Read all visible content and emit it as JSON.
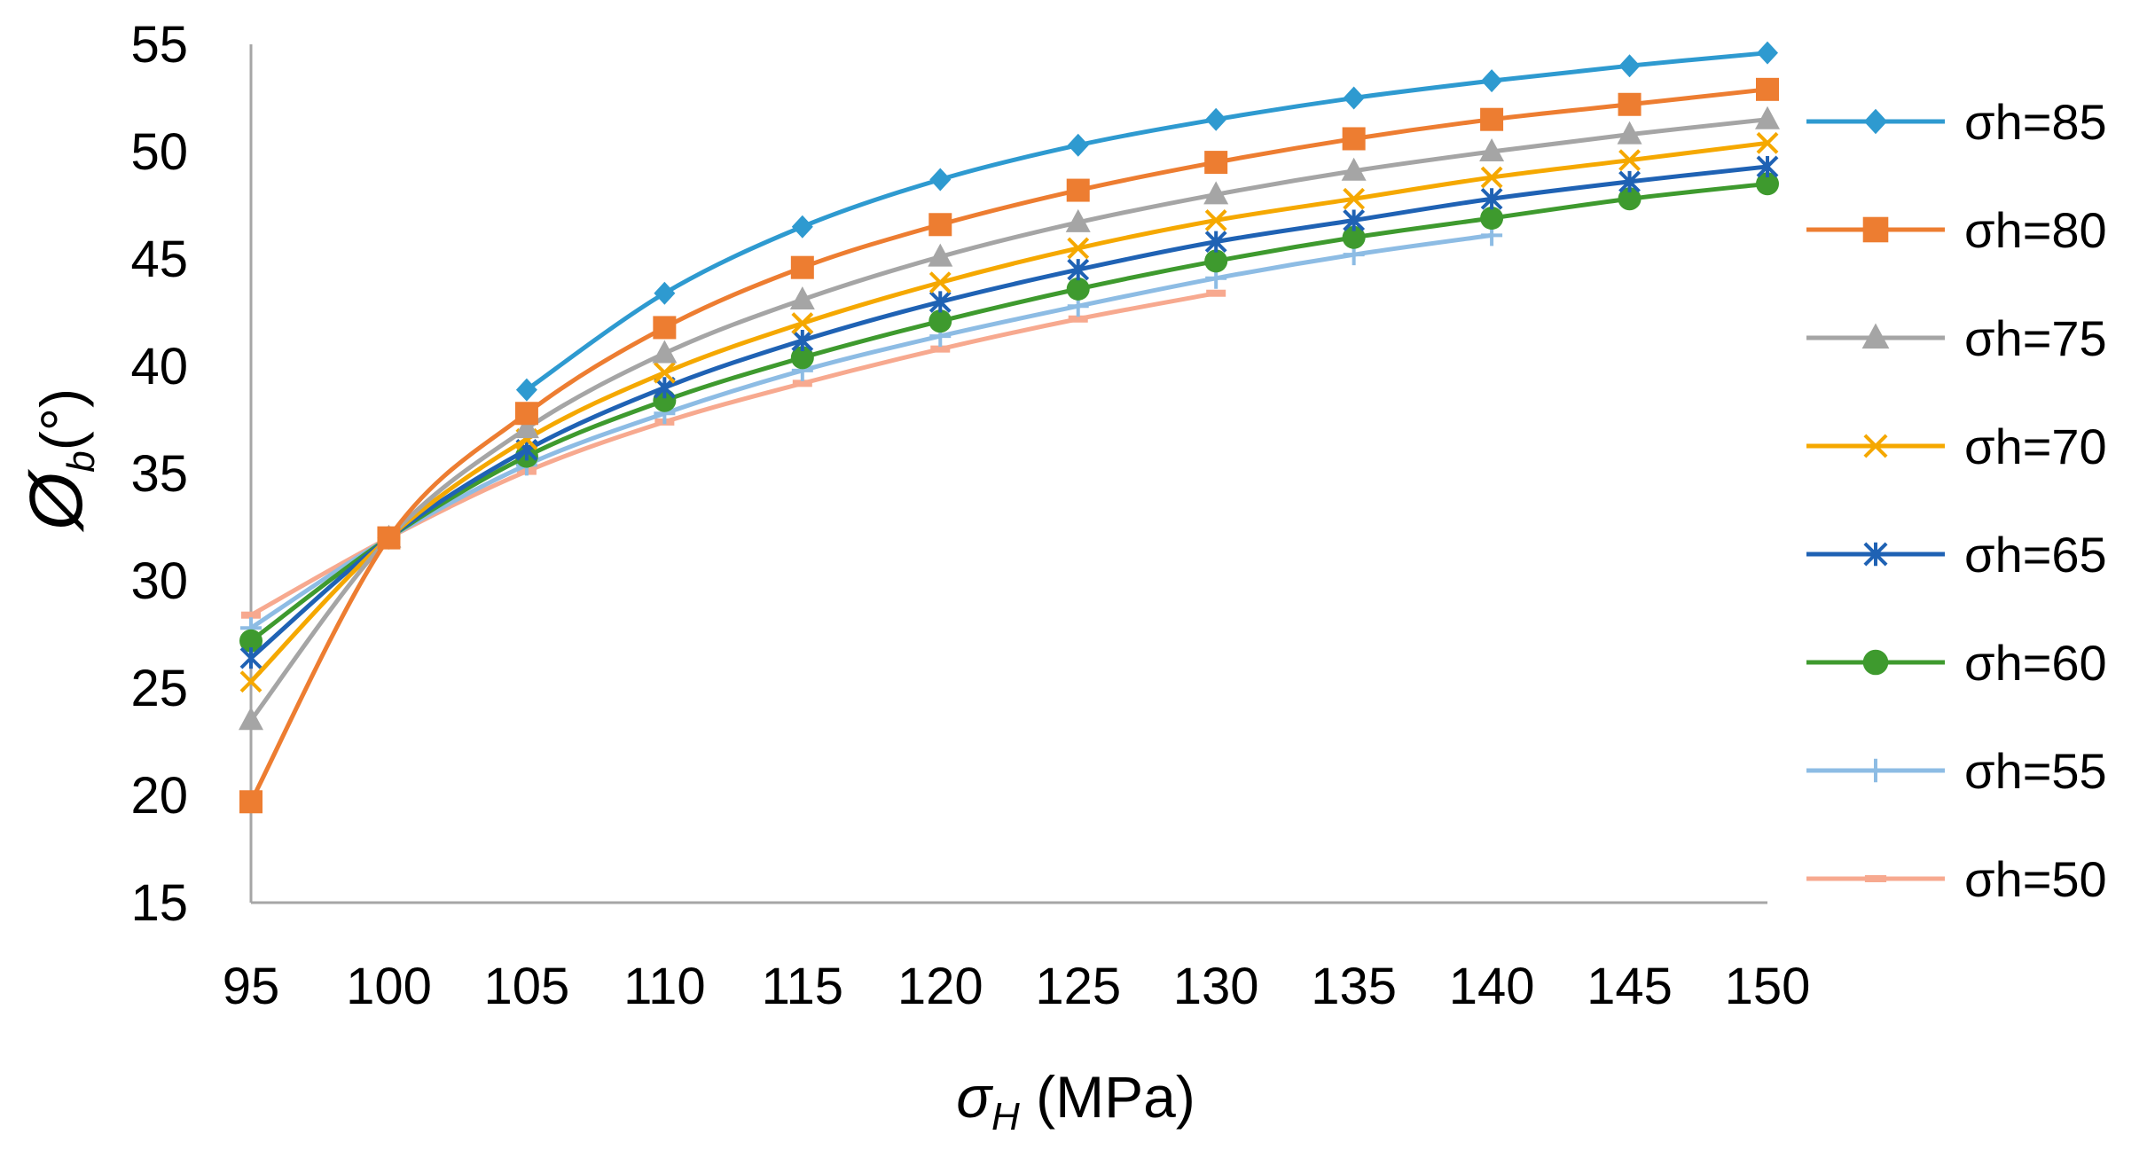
{
  "chart_data": {
    "type": "line",
    "title": "",
    "xlabel": {
      "symbol": "σ",
      "sub": "H",
      "unit": " (MPa)"
    },
    "ylabel": {
      "symbol": "Ø",
      "sub": "b",
      "unit": "(°)"
    },
    "x": [
      95,
      100,
      105,
      110,
      115,
      120,
      125,
      130,
      135,
      140,
      145,
      150
    ],
    "x_tick_labels": [
      "95",
      "100",
      "105",
      "110",
      "115",
      "120",
      "125",
      "130",
      "135",
      "140",
      "145",
      "150"
    ],
    "ylim": [
      15,
      55
    ],
    "y_ticks": [
      15,
      20,
      25,
      30,
      35,
      40,
      45,
      50,
      55
    ],
    "y_tick_labels": [
      "15",
      "20",
      "25",
      "30",
      "35",
      "40",
      "45",
      "50",
      "55"
    ],
    "grid": false,
    "legend_position": "right",
    "series": [
      {
        "name": "σh=85",
        "color": "#2E9AD0",
        "marker": "diamond",
        "values": [
          null,
          null,
          38.9,
          43.4,
          46.5,
          48.7,
          50.3,
          51.5,
          52.5,
          53.3,
          54.0,
          54.6
        ]
      },
      {
        "name": "σh=80",
        "color": "#ED7D31",
        "marker": "square",
        "values": [
          19.7,
          32.0,
          37.8,
          41.8,
          44.6,
          46.6,
          48.2,
          49.5,
          50.6,
          51.5,
          52.2,
          52.9
        ]
      },
      {
        "name": "σh=75",
        "color": "#A5A5A5",
        "marker": "triangle",
        "values": [
          23.5,
          32.0,
          37.1,
          40.6,
          43.1,
          45.1,
          46.7,
          48.0,
          49.1,
          50.0,
          50.8,
          51.5
        ]
      },
      {
        "name": "σh=70",
        "color": "#F5A800",
        "marker": "x",
        "values": [
          25.3,
          32.0,
          36.6,
          39.7,
          42.0,
          43.9,
          45.5,
          46.8,
          47.8,
          48.8,
          49.6,
          50.4
        ]
      },
      {
        "name": "σh=65",
        "color": "#1F62B4",
        "marker": "star",
        "values": [
          26.4,
          32.0,
          36.1,
          39.0,
          41.2,
          43.0,
          44.5,
          45.8,
          46.8,
          47.8,
          48.6,
          49.3
        ]
      },
      {
        "name": "σh=60",
        "color": "#3E9A2E",
        "marker": "circle",
        "values": [
          27.2,
          32.0,
          35.8,
          38.4,
          40.4,
          42.1,
          43.6,
          44.9,
          46.0,
          46.9,
          47.8,
          48.5
        ]
      },
      {
        "name": "σh=55",
        "color": "#8DBCE4",
        "marker": "plus",
        "values": [
          27.8,
          32.0,
          35.4,
          37.8,
          39.8,
          41.4,
          42.8,
          44.1,
          45.2,
          46.1,
          null,
          null
        ]
      },
      {
        "name": "σh=50",
        "color": "#F7A98F",
        "marker": "dash",
        "values": [
          28.4,
          32.0,
          35.1,
          37.4,
          39.2,
          40.8,
          42.2,
          43.4,
          null,
          null,
          null,
          null
        ]
      }
    ]
  }
}
